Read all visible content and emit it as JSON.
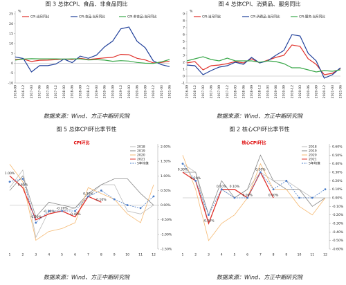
{
  "chart_data": [
    {
      "type": "line",
      "title": "图 3  总体CPI、食品、非食品同比",
      "y_label": "%",
      "source": "数据来源：Wind、方正中期研究院",
      "categories": [
        "2016-09",
        "2016-12",
        "2017-03",
        "2017-06",
        "2017-09",
        "2017-12",
        "2018-03",
        "2018-06",
        "2018-09",
        "2018-12",
        "2019-03",
        "2019-06",
        "2019-09",
        "2019-12",
        "2020-03",
        "2020-06",
        "2020-09",
        "2020-12",
        "2021-03",
        "2021-06"
      ],
      "series": [
        {
          "name": "CPI:当月同比",
          "color": "#e0302a",
          "values": [
            1.9,
            2.1,
            0.9,
            1.5,
            1.6,
            1.8,
            2.1,
            1.9,
            2.5,
            1.9,
            2.3,
            2.7,
            3.0,
            4.5,
            4.3,
            2.5,
            1.7,
            0.2,
            0.4,
            1.1
          ]
        },
        {
          "name": "CPI:食品:当月同比",
          "color": "#1f3f9a",
          "values": [
            3.2,
            2.4,
            -4.4,
            -1.2,
            -1.2,
            -0.4,
            2.1,
            0.3,
            3.6,
            2.5,
            4.1,
            8.3,
            11.2,
            17.4,
            18.3,
            11.1,
            7.9,
            1.2,
            -0.7,
            -1.7
          ]
        },
        {
          "name": "CPI:非食品:当月同比",
          "color": "#3aa84a",
          "values": [
            1.6,
            2.1,
            2.3,
            2.2,
            2.2,
            2.2,
            2.1,
            2.2,
            2.2,
            1.7,
            1.8,
            1.6,
            1.0,
            1.3,
            1.1,
            0.4,
            0.0,
            -0.1,
            0.7,
            1.9
          ]
        }
      ],
      "ylim": [
        -10,
        25
      ],
      "yticks": [
        -10,
        -5,
        0,
        5,
        10,
        15,
        20,
        25
      ],
      "y_axis_side": "left"
    },
    {
      "type": "line",
      "title": "图 4  总体CPI、消费品、服务同比",
      "y_label": "%",
      "source": "数据来源：Wind、方正中期研究院",
      "categories": [
        "2016-09",
        "2016-12",
        "2017-03",
        "2017-06",
        "2017-09",
        "2017-12",
        "2018-03",
        "2018-06",
        "2018-09",
        "2018-12",
        "2019-03",
        "2019-06",
        "2019-09",
        "2019-12",
        "2020-03",
        "2020-06",
        "2020-09",
        "2020-12",
        "2021-03",
        "2021-06"
      ],
      "series": [
        {
          "name": "CPI:当月同比",
          "color": "#e0302a",
          "values": [
            1.9,
            2.1,
            0.9,
            1.5,
            1.6,
            1.8,
            2.1,
            1.9,
            2.5,
            1.9,
            2.3,
            2.7,
            3.0,
            4.5,
            4.3,
            2.5,
            1.7,
            0.2,
            0.4,
            1.1
          ]
        },
        {
          "name": "CPI:消费品:当月同比",
          "color": "#1f3f9a",
          "values": [
            1.6,
            1.5,
            0.2,
            0.8,
            1.3,
            1.5,
            2.0,
            1.7,
            2.7,
            1.9,
            2.2,
            3.0,
            3.7,
            6.0,
            5.8,
            3.3,
            2.2,
            -0.3,
            0.2,
            1.2
          ]
        },
        {
          "name": "CPI:服务:当月同比",
          "color": "#3aa84a",
          "values": [
            2.2,
            2.5,
            2.8,
            2.4,
            2.2,
            2.6,
            2.2,
            2.2,
            2.2,
            2.0,
            2.2,
            2.1,
            1.8,
            1.2,
            1.2,
            0.9,
            0.6,
            0.8,
            0.7,
            0.9
          ]
        }
      ],
      "ylim": [
        -1,
        9
      ],
      "yticks": [
        -1,
        0,
        1,
        2,
        3,
        4,
        5,
        6,
        7,
        8,
        9
      ],
      "y_axis_side": "left"
    },
    {
      "type": "line",
      "title": "图 5  总体CPI环比季节性",
      "inner_title": "CPI环比",
      "source": "数据来源：Wind、方正中期研究院",
      "categories": [
        "1",
        "2",
        "3",
        "4",
        "5",
        "6",
        "7",
        "8",
        "9",
        "10",
        "11",
        "12"
      ],
      "series": [
        {
          "name": "2018",
          "color": "#bbbbbb",
          "values": [
            0.6,
            1.2,
            -1.1,
            -0.2,
            -0.2,
            -0.1,
            0.3,
            0.7,
            0.7,
            -0.2,
            -0.3,
            0.0
          ]
        },
        {
          "name": "2019",
          "color": "#888888",
          "values": [
            0.5,
            1.0,
            -0.4,
            0.1,
            0.0,
            -0.1,
            0.4,
            0.7,
            0.9,
            0.9,
            0.4,
            0.0
          ]
        },
        {
          "name": "2020",
          "color": "#f5b870",
          "values": [
            1.4,
            0.8,
            -1.2,
            -0.9,
            -0.8,
            -0.6,
            0.6,
            0.4,
            0.2,
            -0.3,
            -0.6,
            0.7
          ]
        },
        {
          "name": "2021",
          "color": "#e0302a",
          "values": [
            1.0,
            0.6,
            -0.5,
            -0.3,
            -0.2,
            -0.4,
            0.3,
            0.1,
            null,
            null,
            null,
            null
          ],
          "value_labels": [
            "1.00%",
            "0.60%",
            "-0.50%",
            "-0.30%",
            "-0.20%",
            "-0.40%",
            "0.30%",
            "0.10%",
            null,
            null,
            null,
            null
          ]
        },
        {
          "name": "5年均值",
          "color": "#4a7cc8",
          "dashed": true,
          "markers": true,
          "values": [
            0.8,
            0.9,
            -0.6,
            -0.2,
            -0.2,
            -0.2,
            0.3,
            0.5,
            0.2,
            0.0,
            -0.1,
            0.3
          ]
        }
      ],
      "ylim": [
        -1.5,
        2.0
      ],
      "y_axis_side": "right",
      "yticks": [
        {
          "value": -1.5,
          "label": "-1.50%"
        },
        {
          "value": -1.0,
          "label": "-1.00%"
        },
        {
          "value": -0.5,
          "label": "-0.50%"
        },
        {
          "value": 0,
          "label": "0.00%"
        },
        {
          "value": 0.5,
          "label": "0.50%"
        },
        {
          "value": 1.0,
          "label": "1.00%"
        },
        {
          "value": 1.5,
          "label": "1.50%"
        },
        {
          "value": 2.0,
          "label": "2.00%"
        }
      ]
    },
    {
      "type": "line",
      "title": "图 2  核心CPI环比季节性",
      "inner_title": "核心CPI环比",
      "source": "数据来源：Wind、方正中期研究院",
      "categories": [
        "1",
        "2",
        "3",
        "4",
        "5",
        "6",
        "7",
        "8",
        "9",
        "10",
        "11",
        "12"
      ],
      "series": [
        {
          "name": "2018",
          "color": "#bbbbbb",
          "values": [
            0.4,
            0.3,
            -0.3,
            0.1,
            0.0,
            0.1,
            0.3,
            0.2,
            0.2,
            0.1,
            0.0,
            0.0
          ]
        },
        {
          "name": "2019",
          "color": "#888888",
          "values": [
            0.3,
            0.3,
            -0.2,
            0.2,
            0.0,
            0.1,
            0.5,
            0.2,
            0.1,
            0.1,
            -0.1,
            0.0
          ]
        },
        {
          "name": "2020",
          "color": "#f5b870",
          "values": [
            0.5,
            0.1,
            -0.5,
            -0.3,
            -0.2,
            0.0,
            0.4,
            0.1,
            0.1,
            -0.1,
            -0.2,
            0.0
          ]
        },
        {
          "name": "2021",
          "color": "#e0302a",
          "values": [
            0.3,
            0.2,
            -0.3,
            0.1,
            0.1,
            0.0,
            0.3,
            0.0,
            null,
            null,
            null,
            null
          ],
          "value_labels": [
            "0.30%",
            "0.20%",
            "-0.30%",
            "0.10%",
            "0.10%",
            "0.00%",
            "0.30%",
            "0.00%",
            null,
            null,
            null,
            null
          ]
        },
        {
          "name": "5年均值",
          "color": "#4a7cc8",
          "dashed": true,
          "markers": true,
          "values": [
            0.4,
            0.2,
            -0.2,
            0.1,
            0.0,
            0.0,
            0.3,
            0.1,
            0.2,
            0.0,
            0.0,
            0.1
          ]
        }
      ],
      "ylim": [
        -0.6,
        0.6
      ],
      "y_axis_side": "right",
      "yticks": [
        {
          "value": -0.6,
          "label": "-0.60%"
        },
        {
          "value": -0.5,
          "label": "-0.50%"
        },
        {
          "value": -0.4,
          "label": "-0.40%"
        },
        {
          "value": -0.3,
          "label": "-0.30%"
        },
        {
          "value": -0.2,
          "label": "-0.20%"
        },
        {
          "value": -0.1,
          "label": "-0.10%"
        },
        {
          "value": 0,
          "label": "0.00%"
        },
        {
          "value": 0.1,
          "label": "0.10%"
        },
        {
          "value": 0.2,
          "label": "0.20%"
        },
        {
          "value": 0.3,
          "label": "0.30%"
        },
        {
          "value": 0.4,
          "label": "0.40%"
        },
        {
          "value": 0.5,
          "label": "0.50%"
        },
        {
          "value": 0.6,
          "label": "0.60%"
        }
      ]
    }
  ]
}
